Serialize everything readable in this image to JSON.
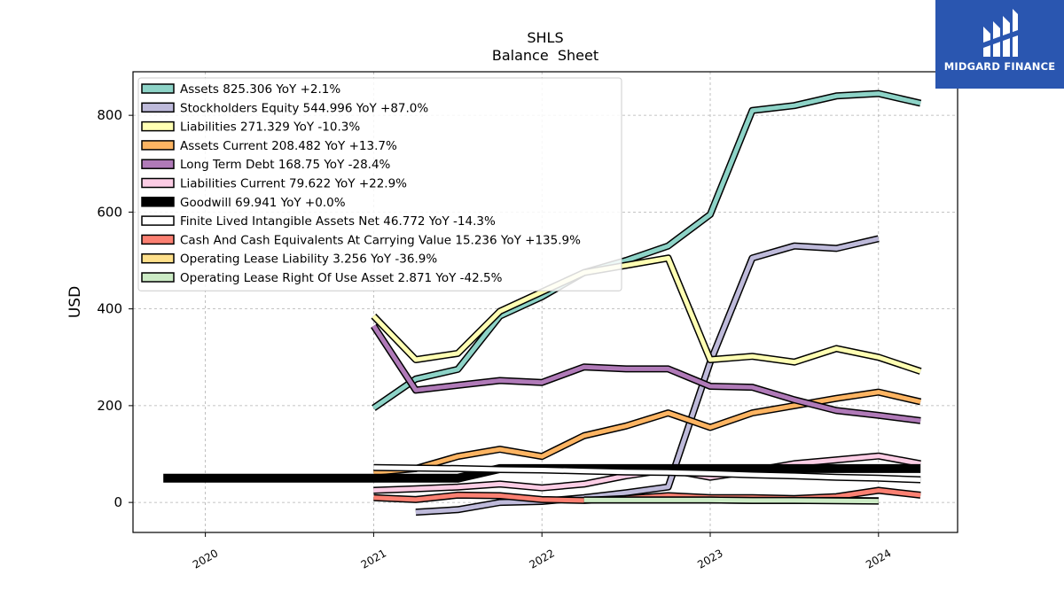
{
  "chart_data": {
    "type": "line",
    "title": "SHLS",
    "subtitle": "Balance  Sheet",
    "ylabel": "USD",
    "xlabel": "",
    "ylim": [
      -62,
      890
    ],
    "xlim": [
      2019.57,
      2024.47
    ],
    "x_ticks": [
      2020,
      2021,
      2022,
      2023,
      2024
    ],
    "x_tick_labels": [
      "2020",
      "2021",
      "2022",
      "2023",
      "2024"
    ],
    "y_ticks": [
      0,
      200,
      400,
      600,
      800
    ],
    "y_tick_labels": [
      "0",
      "200",
      "400",
      "600",
      "800"
    ],
    "grid": true,
    "legend_position": "upper-left",
    "series": [
      {
        "name": "Assets  825.306 YoY +2.1%",
        "color": "#8dd3c7",
        "x": [
          2021.0,
          2021.25,
          2021.5,
          2021.75,
          2022.0,
          2022.25,
          2022.5,
          2022.75,
          2023.0,
          2023.25,
          2023.5,
          2023.75,
          2024.0,
          2024.25
        ],
        "y": [
          195,
          255,
          275,
          385,
          425,
          475,
          500,
          530,
          595,
          810,
          820,
          840,
          845,
          825
        ]
      },
      {
        "name": "Stockholders Equity  544.996 YoY +87.0%",
        "color": "#bebada",
        "x": [
          2021.25,
          2021.5,
          2021.75,
          2022.0,
          2022.25,
          2022.5,
          2022.75,
          2023.0,
          2023.25,
          2023.5,
          2023.75,
          2024.0
        ],
        "y": [
          -20,
          -15,
          0,
          2,
          10,
          20,
          32,
          290,
          505,
          530,
          525,
          545
        ]
      },
      {
        "name": "Liabilities  271.329 YoY -10.3%",
        "color": "#ffffb3",
        "x": [
          2021.0,
          2021.25,
          2021.5,
          2021.75,
          2022.0,
          2022.25,
          2022.5,
          2022.75,
          2023.0,
          2023.25,
          2023.5,
          2023.75,
          2024.0,
          2024.25
        ],
        "y": [
          385,
          295,
          308,
          395,
          435,
          475,
          490,
          505,
          295,
          302,
          290,
          318,
          300,
          271
        ]
      },
      {
        "name": "Assets Current  208.482 YoY +13.7%",
        "color": "#fdb462",
        "x": [
          2021.0,
          2021.25,
          2021.5,
          2021.75,
          2022.0,
          2022.25,
          2022.5,
          2022.75,
          2023.0,
          2023.25,
          2023.5,
          2023.75,
          2024.0,
          2024.25
        ],
        "y": [
          62,
          70,
          95,
          110,
          95,
          138,
          158,
          185,
          155,
          185,
          200,
          215,
          228,
          208
        ]
      },
      {
        "name": "Long Term Debt  168.75 YoY -28.4%",
        "color": "#b07ab8",
        "x": [
          2021.0,
          2021.25,
          2021.5,
          2021.75,
          2022.0,
          2022.25,
          2022.5,
          2022.75,
          2023.0,
          2023.25,
          2023.5,
          2023.75,
          2024.0,
          2024.25
        ],
        "y": [
          365,
          232,
          242,
          252,
          248,
          280,
          276,
          276,
          240,
          238,
          212,
          190,
          180,
          169
        ]
      },
      {
        "name": "Liabilities Current  79.622 YoY +22.9%",
        "color": "#fccde5",
        "x": [
          2021.0,
          2021.25,
          2021.5,
          2021.75,
          2022.0,
          2022.25,
          2022.5,
          2022.75,
          2023.0,
          2023.25,
          2023.5,
          2023.75,
          2024.0,
          2024.25
        ],
        "y": [
          25,
          28,
          32,
          38,
          30,
          38,
          55,
          68,
          52,
          65,
          80,
          88,
          96,
          80
        ]
      },
      {
        "name": "Goodwill  69.941 YoY +0.0%",
        "color": "#000000",
        "x": [
          2019.75,
          2020.0,
          2020.25,
          2020.5,
          2020.75,
          2021.0,
          2021.25,
          2021.5,
          2021.75,
          2022.0,
          2022.25,
          2022.5,
          2022.75,
          2023.0,
          2023.25,
          2023.5,
          2023.75,
          2024.0,
          2024.25
        ],
        "y": [
          50,
          50,
          50,
          50,
          50,
          50,
          50,
          50,
          70,
          70,
          70,
          70,
          70,
          70,
          70,
          70,
          70,
          70,
          70
        ]
      },
      {
        "name": "Finite Lived Intangible Assets Net  46.772 YoY -14.3%",
        "color": "#ffffff",
        "x": [
          2021.0,
          2021.25,
          2021.5,
          2021.75,
          2022.0,
          2022.25,
          2022.5,
          2022.75,
          2023.0,
          2023.25,
          2023.5,
          2023.75,
          2024.0,
          2024.25
        ],
        "y": [
          72,
          71,
          70,
          68,
          67,
          65,
          63,
          62,
          60,
          57,
          55,
          52,
          50,
          47
        ]
      },
      {
        "name": "Cash And Cash Equivalents At Carrying Value  15.236 YoY +135.9%",
        "color": "#fb8072",
        "x": [
          2021.0,
          2021.25,
          2021.5,
          2021.75,
          2022.0,
          2022.25,
          2022.5,
          2022.75,
          2023.0,
          2023.25,
          2023.5,
          2023.75,
          2024.0,
          2024.25
        ],
        "y": [
          10,
          6,
          15,
          14,
          6,
          4,
          8,
          14,
          10,
          10,
          8,
          12,
          25,
          15
        ]
      },
      {
        "name": "Operating Lease Liability  3.256 YoY -36.9%",
        "color": "#fee08b",
        "x": [
          2022.25,
          2022.5,
          2022.75,
          2023.0,
          2023.25,
          2023.5,
          2023.75,
          2024.0
        ],
        "y": [
          5,
          5,
          5,
          5,
          4,
          4,
          4,
          3.3
        ]
      },
      {
        "name": "Operating Lease Right Of Use Asset  2.871 YoY -42.5%",
        "color": "#ccebc5",
        "x": [
          2022.25,
          2022.5,
          2022.75,
          2023.0,
          2023.25,
          2023.5,
          2023.75,
          2024.0
        ],
        "y": [
          5,
          5,
          5,
          5,
          4,
          4,
          3.5,
          2.9
        ]
      }
    ]
  },
  "brand": {
    "name": "MIDGARD FINANCE",
    "logo_icon": "midgard-logo-icon",
    "background_color": "#2a56b0"
  }
}
